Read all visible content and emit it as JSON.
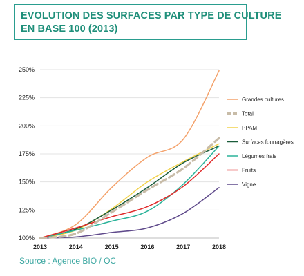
{
  "title": {
    "line1": "EVOLUTION DES SURFACES PAR TYPE DE CULTURE",
    "line2": "EN BASE 100 (2013)"
  },
  "source": "Source : Agence BIO / OC",
  "chart_data": {
    "type": "line",
    "x": [
      2013,
      2014,
      2015,
      2016,
      2017,
      2018
    ],
    "x_tick_labels": [
      "2013",
      "2014",
      "2015",
      "2016",
      "2017",
      "2018"
    ],
    "ylim": [
      100,
      250
    ],
    "y_ticks": [
      100,
      125,
      150,
      175,
      200,
      225,
      250
    ],
    "y_tick_labels": [
      "100%",
      "125%",
      "150%",
      "175%",
      "200%",
      "225%",
      "250%"
    ],
    "grid": "horizontal",
    "legend_position": "right",
    "series": [
      {
        "name": "Grandes cultures",
        "color": "#f4a26b",
        "dash": false,
        "values": [
          100,
          112,
          145,
          172,
          188,
          249
        ]
      },
      {
        "name": "Total",
        "color": "#c8bca8",
        "dash": true,
        "values": [
          100,
          104,
          123,
          143,
          162,
          189
        ]
      },
      {
        "name": "PPAM",
        "color": "#f2d24b",
        "dash": false,
        "values": [
          100,
          107,
          126,
          150,
          168,
          184
        ]
      },
      {
        "name": "Surfaces fourragères",
        "color": "#1a5c3a",
        "dash": false,
        "values": [
          100,
          108,
          125,
          145,
          167,
          182
        ]
      },
      {
        "name": "Légumes frais",
        "color": "#2bb39a",
        "dash": false,
        "values": [
          100,
          107,
          115,
          124,
          148,
          182
        ]
      },
      {
        "name": "Fruits",
        "color": "#e02a2a",
        "dash": false,
        "values": [
          100,
          109,
          119,
          128,
          146,
          175
        ]
      },
      {
        "name": "Vigne",
        "color": "#5f4a8b",
        "dash": false,
        "values": [
          100,
          101,
          105,
          109,
          122,
          145
        ]
      }
    ]
  }
}
